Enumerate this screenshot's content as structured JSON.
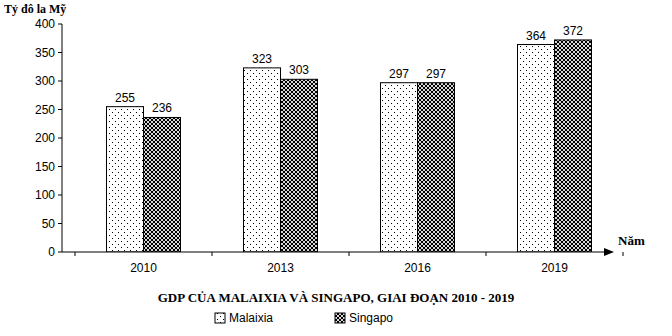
{
  "chart_data": {
    "type": "bar",
    "title": "GDP CỦA MALAIXIA VÀ SINGAPO, GIAI ĐOẠN 2010 - 2019",
    "y_label": "Tỷ đô la Mỹ",
    "x_label": "Năm",
    "categories": [
      "2010",
      "2013",
      "2016",
      "2019"
    ],
    "series": [
      {
        "name": "Malaixia",
        "color": "#000000",
        "values": [
          255,
          323,
          297,
          364
        ]
      },
      {
        "name": "Singapo",
        "color": "#000000",
        "values": [
          236,
          303,
          297,
          372
        ]
      }
    ],
    "ylim": [
      0,
      400
    ],
    "yticks": [
      0,
      50,
      100,
      150,
      200,
      250,
      300,
      350,
      400
    ],
    "grid": false,
    "data_labels": true,
    "legend": "bottom"
  }
}
